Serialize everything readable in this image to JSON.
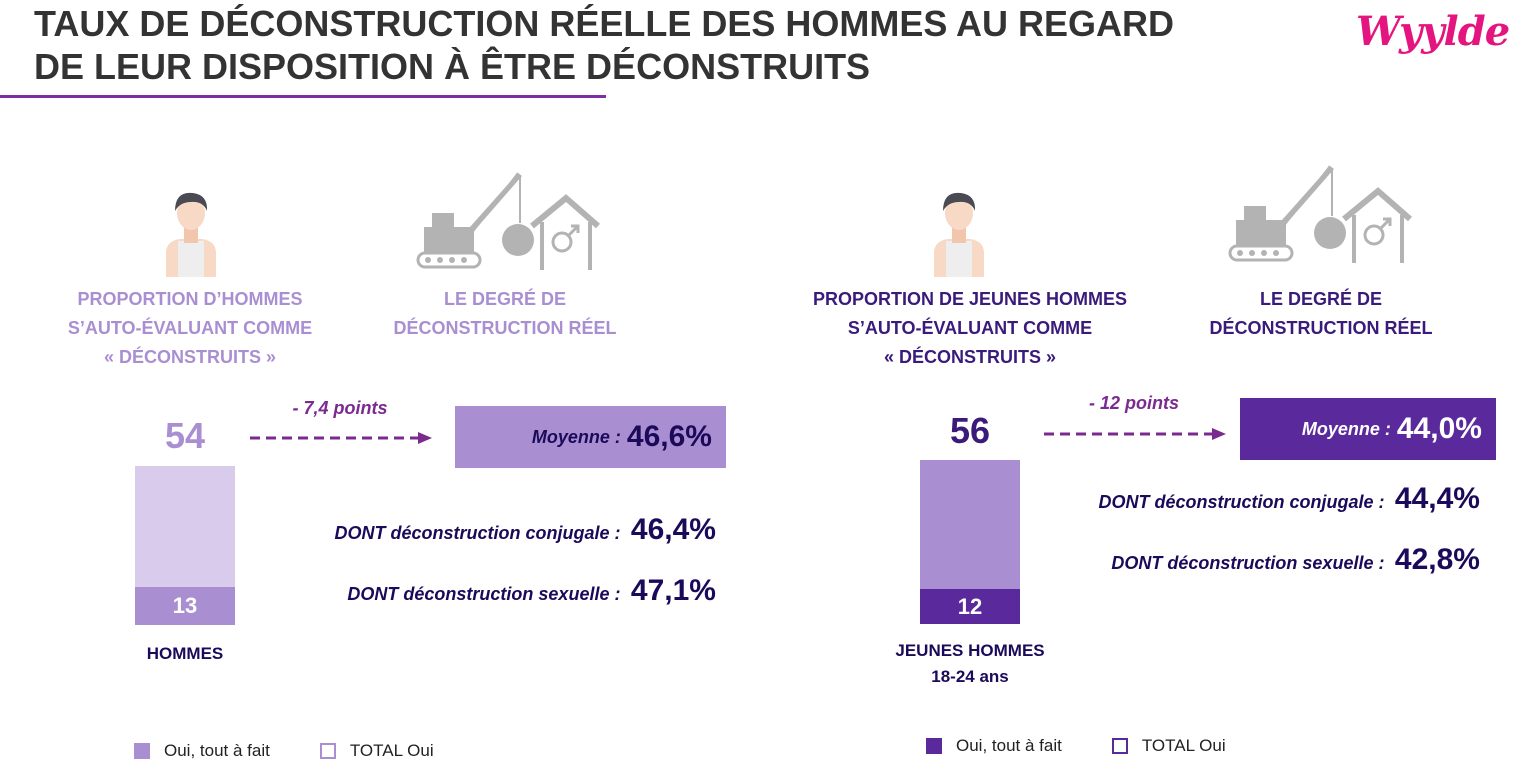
{
  "title": {
    "line1": "TAUX DE DÉCONSTRUCTION RÉELLE DES HOMMES AU REGARD",
    "line2": "DE LEUR DISPOSITION À ÊTRE DÉCONSTRUITS"
  },
  "logo": "Wyylde",
  "colors": {
    "light_purple": "#a98fd1",
    "pale_purple": "#d9cbeb",
    "dark_purple": "#5a2a9c",
    "navy": "#1b0a5a",
    "accent_magenta": "#7b2a8f",
    "brand_pink": "#e4157e",
    "icon_gray": "#b3b3b3"
  },
  "icons": [
    "person-icon",
    "demolition-crane-icon",
    "wrecking-ball-icon",
    "house-male-symbol-icon"
  ],
  "legend": {
    "oui_tout_a_fait": "Oui, tout à fait",
    "total_oui": "TOTAL Oui"
  },
  "chart_data": [
    {
      "type": "bar",
      "group": "HOMMES",
      "categories": [
        "HOMMES"
      ],
      "series": [
        {
          "name": "Oui, tout à fait",
          "values": [
            13
          ]
        },
        {
          "name": "TOTAL Oui",
          "values": [
            54
          ]
        }
      ],
      "header_left": {
        "line1": "PROPORTION D’HOMMES",
        "line2": "S’AUTO-ÉVALUANT COMME",
        "line3": "« DÉCONSTRUITS »"
      },
      "header_right": {
        "line1": "LE DEGRÉ DE",
        "line2": "DÉCONSTRUCTION RÉEL"
      },
      "difference": "- 7,4 points",
      "average": {
        "label": "Moyenne :",
        "value": "46,6%",
        "numeric": 46.6
      },
      "conjugale": {
        "label": "DONT déconstruction conjugale :",
        "value": "46,4%",
        "numeric": 46.4
      },
      "sexuelle": {
        "label": "DONT déconstruction sexuelle :",
        "value": "47,1%",
        "numeric": 47.1
      },
      "caption": {
        "line1": "HOMMES",
        "line2": ""
      }
    },
    {
      "type": "bar",
      "group": "JEUNES HOMMES 18-24 ans",
      "categories": [
        "JEUNES HOMMES 18-24 ans"
      ],
      "series": [
        {
          "name": "Oui, tout à fait",
          "values": [
            12
          ]
        },
        {
          "name": "TOTAL Oui",
          "values": [
            56
          ]
        }
      ],
      "header_left": {
        "line1": "PROPORTION DE JEUNES HOMMES",
        "line2": "S’AUTO-ÉVALUANT COMME",
        "line3": "« DÉCONSTRUITS »"
      },
      "header_right": {
        "line1": "LE DEGRÉ DE",
        "line2": "DÉCONSTRUCTION RÉEL"
      },
      "difference": "- 12 points",
      "average": {
        "label": "Moyenne :",
        "value": "44,0%",
        "numeric": 44.0
      },
      "conjugale": {
        "label": "DONT déconstruction conjugale :",
        "value": "44,4%",
        "numeric": 44.4
      },
      "sexuelle": {
        "label": "DONT déconstruction sexuelle :",
        "value": "42,8%",
        "numeric": 42.8
      },
      "caption": {
        "line1": "JEUNES HOMMES",
        "line2": "18-24 ans"
      }
    }
  ]
}
